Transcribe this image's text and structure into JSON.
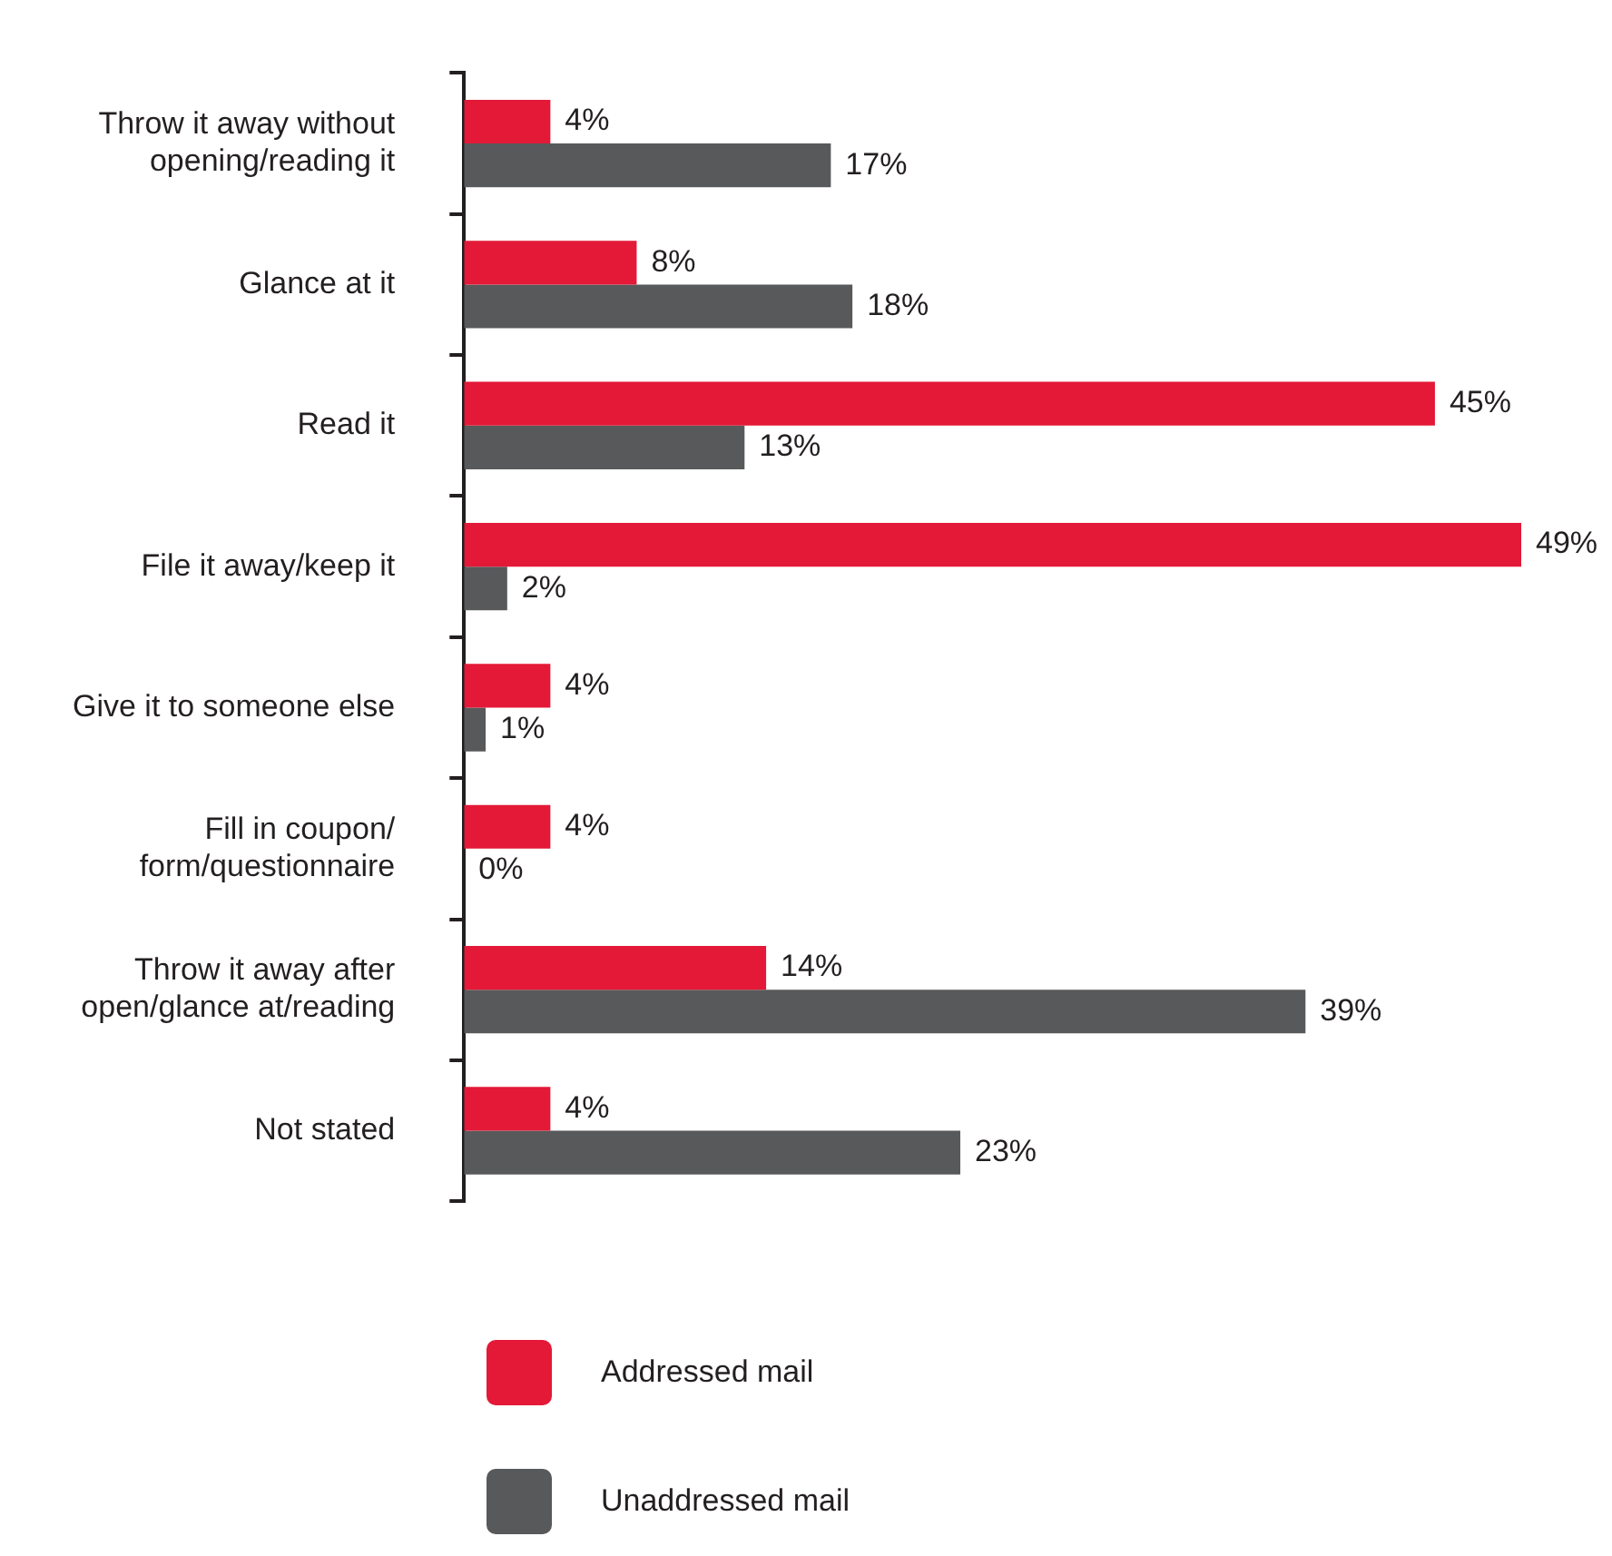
{
  "chart_data": {
    "type": "bar",
    "orientation": "horizontal",
    "legend": "bottom",
    "categories": [
      "Throw it away without opening/reading it",
      "Glance at it",
      "Read it",
      "File it away/keep it",
      "Give it to someone else",
      "Fill in coupon/ form/questionnaire",
      "Throw it away after open/glance at/reading",
      "Not stated"
    ],
    "series": [
      {
        "name": "Addressed mail",
        "color": "#e31937",
        "values": [
          4,
          8,
          45,
          49,
          4,
          4,
          14,
          4
        ],
        "value_labels": [
          "4%",
          "8%",
          "45%",
          "49%",
          "4%",
          "4%",
          "14%",
          "4%"
        ]
      },
      {
        "name": "Unaddressed mail",
        "color": "#58595b",
        "values": [
          17,
          18,
          13,
          2,
          1,
          0,
          39,
          23
        ],
        "value_labels": [
          "17%",
          "18%",
          "13%",
          "2%",
          "1%",
          "0%",
          "39%",
          "23%"
        ]
      }
    ]
  }
}
